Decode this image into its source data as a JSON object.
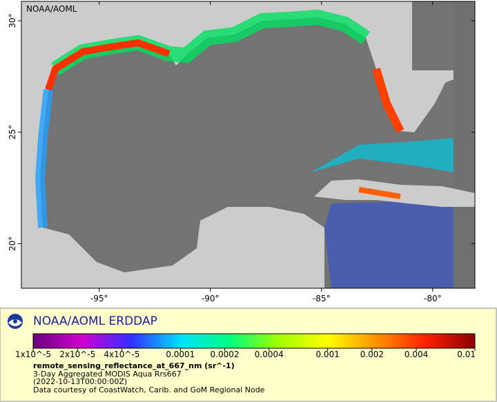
{
  "map": {
    "source_label": "NOAA/AOML",
    "lon_range": [
      -98.5,
      -78.1
    ],
    "lat_range": [
      18.0,
      30.87
    ],
    "lon_ticks": [
      {
        "value": -95,
        "label": "-95°"
      },
      {
        "value": -90,
        "label": "-90°"
      },
      {
        "value": -85,
        "label": "-85°"
      },
      {
        "value": -80,
        "label": "-80°"
      }
    ],
    "lat_ticks": [
      {
        "value": 20,
        "label": "20°"
      },
      {
        "value": 25,
        "label": "25°"
      },
      {
        "value": 30,
        "label": "30°"
      }
    ]
  },
  "legend": {
    "title": "NOAA/AOML ERDDAP",
    "colorbar": {
      "scale": "log",
      "range": [
        1e-05,
        0.01
      ],
      "colors": [
        "#6a0080",
        "#d000d0",
        "#3030ff",
        "#00e0ff",
        "#00ff80",
        "#a0ff00",
        "#ffff00",
        "#ff9000",
        "#ff2000",
        "#8a0000"
      ],
      "ticks": [
        {
          "value": 1e-05,
          "label": "1x10^-5"
        },
        {
          "value": 2e-05,
          "label": "2x10^-5"
        },
        {
          "value": 4e-05,
          "label": "4x10^-5"
        },
        {
          "value": 0.0001,
          "label": "0.0001"
        },
        {
          "value": 0.0002,
          "label": "0.0002"
        },
        {
          "value": 0.0004,
          "label": "0.0004"
        },
        {
          "value": 0.001,
          "label": "0.001"
        },
        {
          "value": 0.002,
          "label": "0.002"
        },
        {
          "value": 0.004,
          "label": "0.004"
        },
        {
          "value": 0.01,
          "label": "0.01"
        }
      ]
    },
    "variable": "remote_sensing_reflectance_at_667_nm (sr^-1)",
    "lines": [
      "3-Day Aggregated MODIS Aqua Rrs667",
      "(2022-10-13T00:00:00Z)",
      "Data courtesy of CoastWatch, Carib. and GoM Regional Node"
    ]
  }
}
